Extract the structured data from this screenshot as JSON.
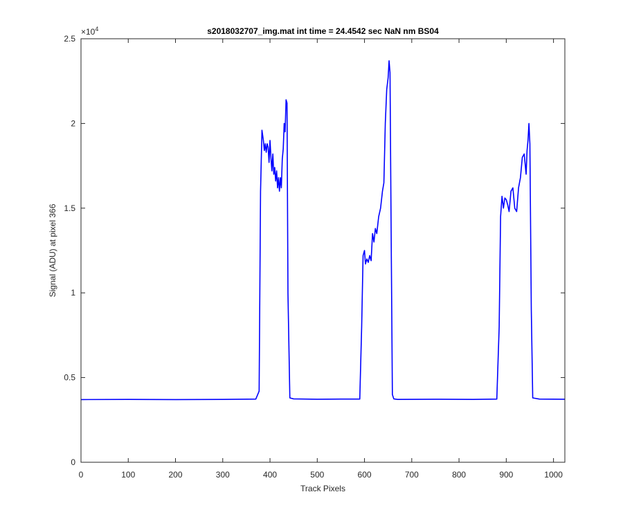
{
  "chart_data": {
    "type": "line",
    "title": "s2018032707_img.mat int time = 24.4542 sec  NaN nm BS04",
    "xlabel": "Track Pixels",
    "ylabel": "Signal (ADU) at pixel 366",
    "y_exponent_label": "×10",
    "y_exponent_power": "4",
    "xlim": [
      0,
      1024
    ],
    "ylim": [
      0,
      2.5
    ],
    "x_ticks": [
      0,
      100,
      200,
      300,
      400,
      500,
      600,
      700,
      800,
      900,
      1000
    ],
    "x_tick_labels": [
      "0",
      "100",
      "200",
      "300",
      "400",
      "500",
      "600",
      "700",
      "800",
      "900",
      "1000"
    ],
    "y_ticks": [
      0,
      0.5,
      1,
      1.5,
      2,
      2.5
    ],
    "y_tick_labels": [
      "0",
      "0.5",
      "1",
      "1.5",
      "2",
      "2.5"
    ],
    "grid": false,
    "box": true,
    "series": [
      {
        "color": "#0000ff",
        "x": [
          0,
          100,
          200,
          300,
          370,
          377,
          380,
          383,
          386,
          388,
          390,
          392,
          394,
          396,
          398,
          400,
          402,
          404,
          406,
          408,
          410,
          412,
          414,
          416,
          418,
          420,
          422,
          424,
          426,
          428,
          430,
          432,
          434,
          436,
          438,
          442,
          450,
          500,
          550,
          590,
          594,
          597,
          600,
          602,
          605,
          608,
          611,
          614,
          617,
          620,
          623,
          626,
          630,
          634,
          638,
          641,
          644,
          647,
          650,
          652,
          654,
          656,
          659,
          662,
          670,
          750,
          830,
          880,
          885,
          888,
          891,
          894,
          897,
          900,
          903,
          906,
          910,
          914,
          918,
          922,
          926,
          930,
          934,
          938,
          942,
          944,
          946,
          948,
          950,
          953,
          956,
          970,
          1024
        ],
        "y": [
          0.37,
          0.371,
          0.37,
          0.371,
          0.373,
          0.42,
          1.6,
          1.96,
          1.9,
          1.84,
          1.88,
          1.83,
          1.88,
          1.86,
          1.77,
          1.9,
          1.8,
          1.72,
          1.82,
          1.7,
          1.74,
          1.66,
          1.72,
          1.62,
          1.68,
          1.6,
          1.68,
          1.62,
          1.79,
          1.85,
          2.0,
          1.95,
          2.14,
          2.12,
          1.0,
          0.38,
          0.374,
          0.372,
          0.373,
          0.373,
          0.8,
          1.22,
          1.25,
          1.17,
          1.2,
          1.18,
          1.22,
          1.19,
          1.35,
          1.3,
          1.38,
          1.35,
          1.45,
          1.5,
          1.6,
          1.65,
          2.0,
          2.2,
          2.27,
          2.37,
          2.3,
          1.5,
          0.4,
          0.374,
          0.371,
          0.372,
          0.371,
          0.373,
          0.8,
          1.45,
          1.57,
          1.5,
          1.56,
          1.55,
          1.52,
          1.48,
          1.6,
          1.62,
          1.5,
          1.48,
          1.62,
          1.68,
          1.8,
          1.82,
          1.7,
          1.84,
          1.9,
          2.0,
          1.88,
          0.9,
          0.38,
          0.373,
          0.372
        ]
      }
    ]
  }
}
